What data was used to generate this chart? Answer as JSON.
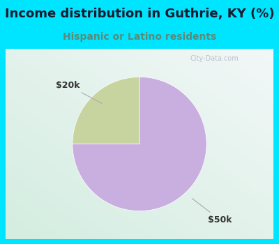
{
  "title": "Income distribution in Guthrie, KY (%)",
  "subtitle": "Hispanic or Latino residents",
  "title_color": "#1a1a2e",
  "subtitle_color": "#5a8a7a",
  "slices": [
    {
      "label": "$20k",
      "value": 25,
      "color": "#c8d4a0"
    },
    {
      "label": "$50k",
      "value": 75,
      "color": "#c9aee0"
    }
  ],
  "outer_bg": "#00e5ff",
  "chart_bg_topleft": "#e8f8f0",
  "chart_bg_center": "#f5fbf8",
  "watermark": "City-Data.com",
  "startangle": 90,
  "label_fontsize": 9,
  "title_fontsize": 13,
  "subtitle_fontsize": 10,
  "label_color": "#333333",
  "line_color": "#aaaaaa"
}
